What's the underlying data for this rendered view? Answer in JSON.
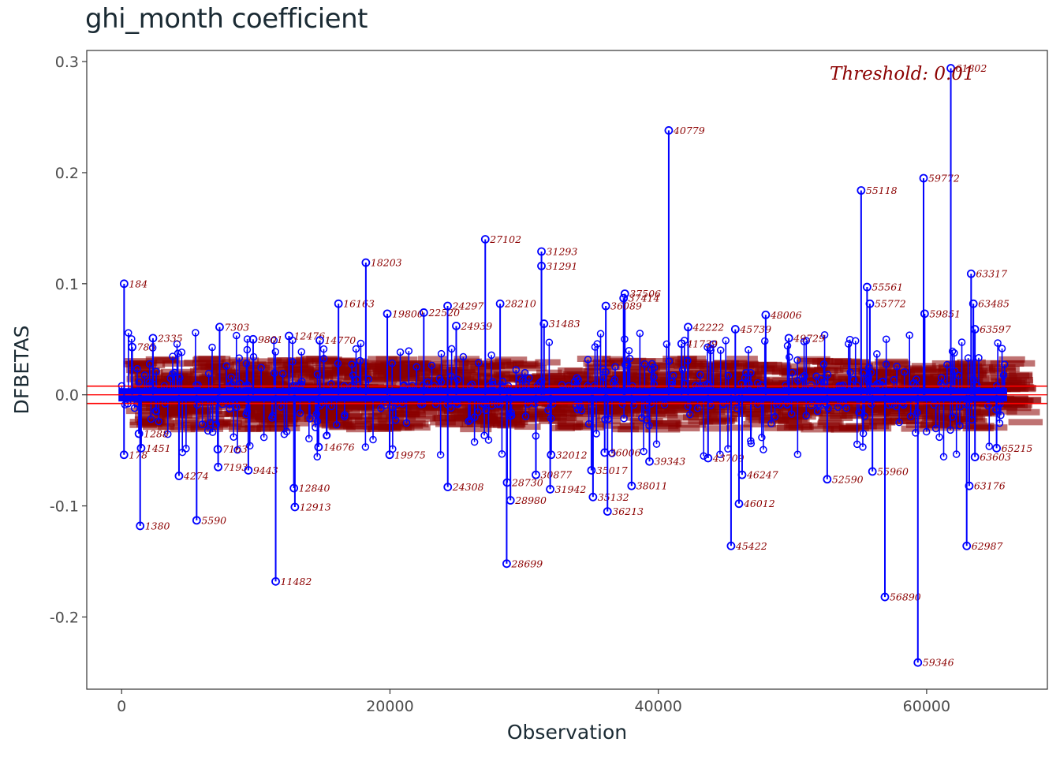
{
  "chart_data": {
    "type": "scatter",
    "style": "lollipop",
    "title": "ghi_month coefficient",
    "xlabel": "Observation",
    "ylabel": "DFBETAS",
    "xlim": [
      -2600,
      69000
    ],
    "ylim": [
      -0.265,
      0.31
    ],
    "x_ticks": [
      0,
      20000,
      40000,
      60000
    ],
    "x_tick_labels": [
      "0",
      "20000",
      "40000",
      "60000"
    ],
    "y_ticks": [
      -0.2,
      -0.1,
      0.0,
      0.1,
      0.2,
      0.3
    ],
    "y_tick_labels": [
      "-0.2",
      "-0.1",
      "0.0",
      "0.1",
      "0.2",
      "0.3"
    ],
    "n_observations": 66000,
    "threshold": 0.01,
    "threshold_label": "Threshold: 0.01",
    "threshold_lines": [
      0.0078,
      -0.0078
    ],
    "grid": false,
    "colors": {
      "points": "#0000ff",
      "threshold": "#ff0000",
      "labels": "#8b0000"
    },
    "labeled_points": [
      {
        "label": "184",
        "x": 184,
        "y": 0.1
      },
      {
        "label": "178",
        "x": 178,
        "y": -0.054
      },
      {
        "label": "785",
        "x": 785,
        "y": 0.043
      },
      {
        "label": "1380",
        "x": 1380,
        "y": -0.118
      },
      {
        "label": "1288",
        "x": 1288,
        "y": -0.035
      },
      {
        "label": "1451",
        "x": 1451,
        "y": -0.048
      },
      {
        "label": "2335",
        "x": 2335,
        "y": 0.051
      },
      {
        "label": "4274",
        "x": 4274,
        "y": -0.073
      },
      {
        "label": "5590",
        "x": 5590,
        "y": -0.113
      },
      {
        "label": "7303",
        "x": 7303,
        "y": 0.061
      },
      {
        "label": "7163",
        "x": 7163,
        "y": -0.049
      },
      {
        "label": "7193",
        "x": 7193,
        "y": -0.065
      },
      {
        "label": "9443",
        "x": 9443,
        "y": -0.068
      },
      {
        "label": "9801",
        "x": 9801,
        "y": 0.05
      },
      {
        "label": "11482",
        "x": 11482,
        "y": -0.168
      },
      {
        "label": "12476",
        "x": 12476,
        "y": 0.053
      },
      {
        "label": "12840",
        "x": 12840,
        "y": -0.084
      },
      {
        "label": "12913",
        "x": 12913,
        "y": -0.101
      },
      {
        "label": "14770",
        "x": 14770,
        "y": 0.049
      },
      {
        "label": "14676",
        "x": 14676,
        "y": -0.047
      },
      {
        "label": "16163",
        "x": 16163,
        "y": 0.082
      },
      {
        "label": "18203",
        "x": 18203,
        "y": 0.119
      },
      {
        "label": "19800",
        "x": 19800,
        "y": 0.073
      },
      {
        "label": "19975",
        "x": 19975,
        "y": -0.054
      },
      {
        "label": "22520",
        "x": 22520,
        "y": 0.074
      },
      {
        "label": "24297",
        "x": 24297,
        "y": 0.08
      },
      {
        "label": "24939",
        "x": 24939,
        "y": 0.062
      },
      {
        "label": "24308",
        "x": 24308,
        "y": -0.083
      },
      {
        "label": "27102",
        "x": 27102,
        "y": 0.14
      },
      {
        "label": "28210",
        "x": 28210,
        "y": 0.082
      },
      {
        "label": "28699",
        "x": 28699,
        "y": -0.152
      },
      {
        "label": "28980",
        "x": 28980,
        "y": -0.095
      },
      {
        "label": "28730",
        "x": 28730,
        "y": -0.079
      },
      {
        "label": "30877",
        "x": 30877,
        "y": -0.072
      },
      {
        "label": "31293",
        "x": 31293,
        "y": 0.129
      },
      {
        "label": "31291",
        "x": 31291,
        "y": 0.116
      },
      {
        "label": "31483",
        "x": 31483,
        "y": 0.064
      },
      {
        "label": "32012",
        "x": 32012,
        "y": -0.054
      },
      {
        "label": "31942",
        "x": 31942,
        "y": -0.085
      },
      {
        "label": "35132",
        "x": 35132,
        "y": -0.092
      },
      {
        "label": "35017",
        "x": 35017,
        "y": -0.068
      },
      {
        "label": "36213",
        "x": 36213,
        "y": -0.105
      },
      {
        "label": "36006",
        "x": 36006,
        "y": -0.052
      },
      {
        "label": "37506",
        "x": 37506,
        "y": 0.091
      },
      {
        "label": "37414",
        "x": 37414,
        "y": 0.087
      },
      {
        "label": "36089",
        "x": 36089,
        "y": 0.08
      },
      {
        "label": "38011",
        "x": 38011,
        "y": -0.082
      },
      {
        "label": "39343",
        "x": 39343,
        "y": -0.06
      },
      {
        "label": "40779",
        "x": 40779,
        "y": 0.238
      },
      {
        "label": "41739",
        "x": 41739,
        "y": 0.046
      },
      {
        "label": "42222",
        "x": 42222,
        "y": 0.061
      },
      {
        "label": "43709",
        "x": 43709,
        "y": -0.057
      },
      {
        "label": "45422",
        "x": 45422,
        "y": -0.136
      },
      {
        "label": "45739",
        "x": 45739,
        "y": 0.059
      },
      {
        "label": "46012",
        "x": 46012,
        "y": -0.098
      },
      {
        "label": "46247",
        "x": 46247,
        "y": -0.072
      },
      {
        "label": "48006",
        "x": 48006,
        "y": 0.072
      },
      {
        "label": "49729",
        "x": 49729,
        "y": 0.051
      },
      {
        "label": "52590",
        "x": 52590,
        "y": -0.076
      },
      {
        "label": "55118",
        "x": 55118,
        "y": 0.184
      },
      {
        "label": "55561",
        "x": 55561,
        "y": 0.097
      },
      {
        "label": "55772",
        "x": 55772,
        "y": 0.082
      },
      {
        "label": "55960",
        "x": 55960,
        "y": -0.069
      },
      {
        "label": "56890",
        "x": 56890,
        "y": -0.182
      },
      {
        "label": "59346",
        "x": 59346,
        "y": -0.241
      },
      {
        "label": "59772",
        "x": 59772,
        "y": 0.195
      },
      {
        "label": "59851",
        "x": 59851,
        "y": 0.073
      },
      {
        "label": "61802",
        "x": 61802,
        "y": 0.294
      },
      {
        "label": "62987",
        "x": 62987,
        "y": -0.136
      },
      {
        "label": "63176",
        "x": 63176,
        "y": -0.082
      },
      {
        "label": "63317",
        "x": 63317,
        "y": 0.109
      },
      {
        "label": "63485",
        "x": 63485,
        "y": 0.082
      },
      {
        "label": "63597",
        "x": 63597,
        "y": 0.059
      },
      {
        "label": "63603",
        "x": 63603,
        "y": -0.056
      },
      {
        "label": "65215",
        "x": 65215,
        "y": -0.048
      }
    ]
  }
}
